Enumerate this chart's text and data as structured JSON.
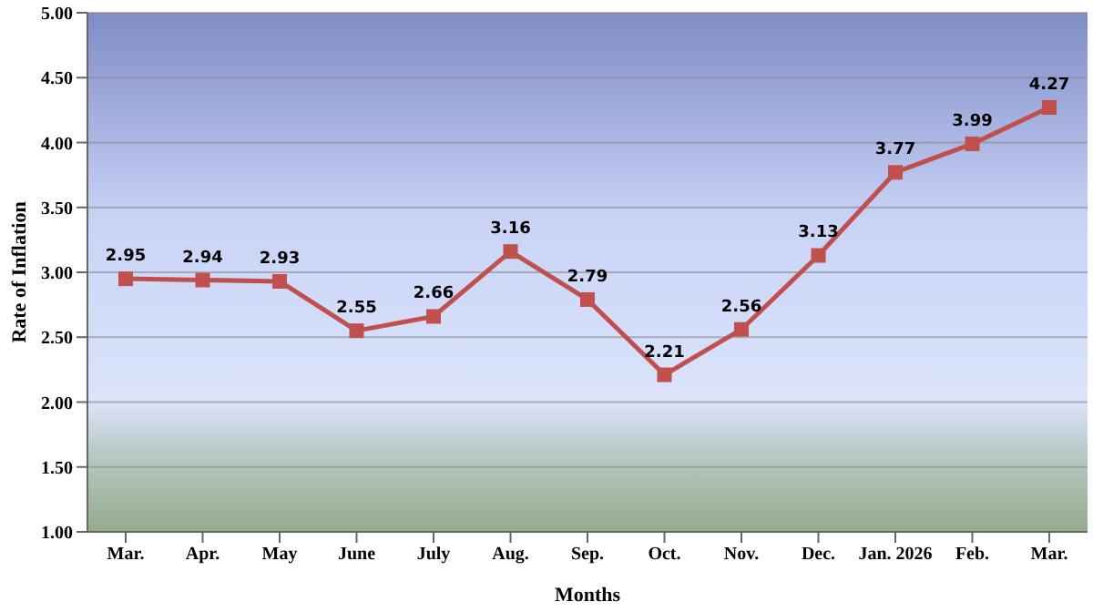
{
  "chart_data": {
    "type": "line",
    "xlabel": "Months",
    "ylabel": "Rate of Inflation",
    "categories": [
      "Mar.",
      "Apr.",
      "May",
      "June",
      "July",
      "Aug.",
      "Sep.",
      "Oct.",
      "Nov.",
      "Dec.",
      "Jan. 2026",
      "Feb.",
      "Mar."
    ],
    "series": [
      {
        "color": "#c0504d",
        "values": [
          2.95,
          2.94,
          2.93,
          2.55,
          2.66,
          3.16,
          2.79,
          2.21,
          2.56,
          3.13,
          3.77,
          3.99,
          4.27
        ]
      }
    ],
    "ylim": [
      1,
      5
    ],
    "yticks": [
      {
        "value": 1,
        "label": "1.00"
      },
      {
        "value": 1.5,
        "label": "1.50"
      },
      {
        "value": 2,
        "label": "2.00"
      },
      {
        "value": 2.5,
        "label": "2.50"
      },
      {
        "value": 3,
        "label": "3.00"
      },
      {
        "value": 3.5,
        "label": "3.50"
      },
      {
        "value": 4,
        "label": "4.00"
      },
      {
        "value": 4.5,
        "label": "4.50"
      },
      {
        "value": 5,
        "label": "5.00"
      }
    ],
    "grid": "y",
    "marker": "square",
    "line_style": "solid",
    "data_labels": true,
    "legend": false
  }
}
